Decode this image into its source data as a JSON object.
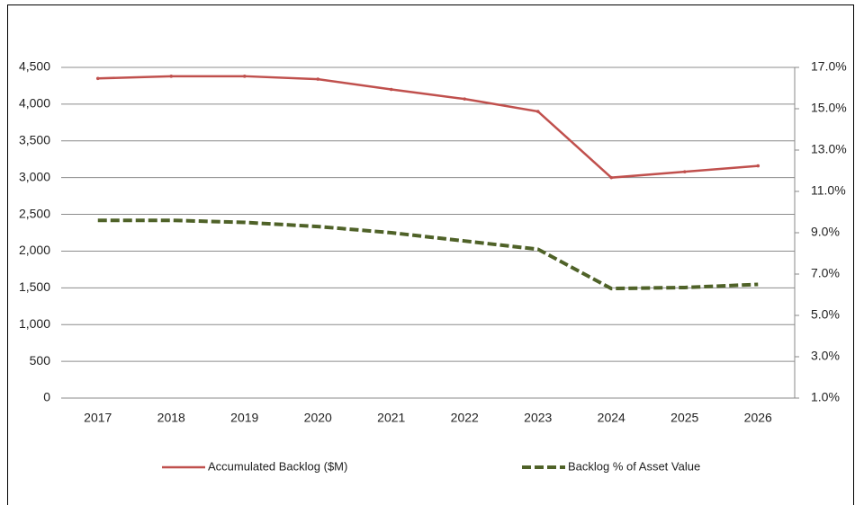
{
  "chart_data": {
    "type": "line",
    "categories": [
      "2017",
      "2018",
      "2019",
      "2020",
      "2021",
      "2022",
      "2023",
      "2024",
      "2025",
      "2026"
    ],
    "series": [
      {
        "name": "Accumulated Backlog ($M)",
        "color": "#c0504d",
        "values": [
          4350,
          4380,
          4380,
          4340,
          4200,
          4070,
          3900,
          3000,
          3080,
          3160
        ]
      },
      {
        "name": "Backlog % of Asset Value",
        "color": "#4f6228",
        "axis": "y2",
        "values": [
          9.6,
          9.6,
          9.5,
          9.3,
          9.0,
          8.6,
          8.2,
          6.3,
          6.35,
          6.5
        ]
      }
    ],
    "ylim": [
      0,
      4500
    ],
    "yticks": [
      0,
      500,
      {
        "value": 1000,
        "label": "1,000"
      },
      {
        "value": 1500,
        "label": "1,500"
      },
      {
        "value": 2000,
        "label": "2,000"
      },
      {
        "value": 2500,
        "label": "2,500"
      },
      {
        "value": 3000,
        "label": "3,000"
      },
      {
        "value": 3500,
        "label": "3,500"
      },
      {
        "value": 4000,
        "label": "4,000"
      },
      {
        "value": 4500,
        "label": "4,500"
      }
    ],
    "y2lim": [
      1,
      17
    ],
    "y2ticks": [
      {
        "value": 1,
        "label": "1.0%"
      },
      {
        "value": 3,
        "label": "3.0%"
      },
      {
        "value": 5,
        "label": "5.0%"
      },
      {
        "value": 7,
        "label": "7.0%"
      },
      {
        "value": 9,
        "label": "9.0%"
      },
      {
        "value": 11,
        "label": "11.0%"
      },
      {
        "value": 13,
        "label": "13.0%"
      },
      {
        "value": 15,
        "label": "15.0%"
      },
      {
        "value": 17,
        "label": "17.0%"
      }
    ],
    "grid": true,
    "legend": "bottom"
  }
}
